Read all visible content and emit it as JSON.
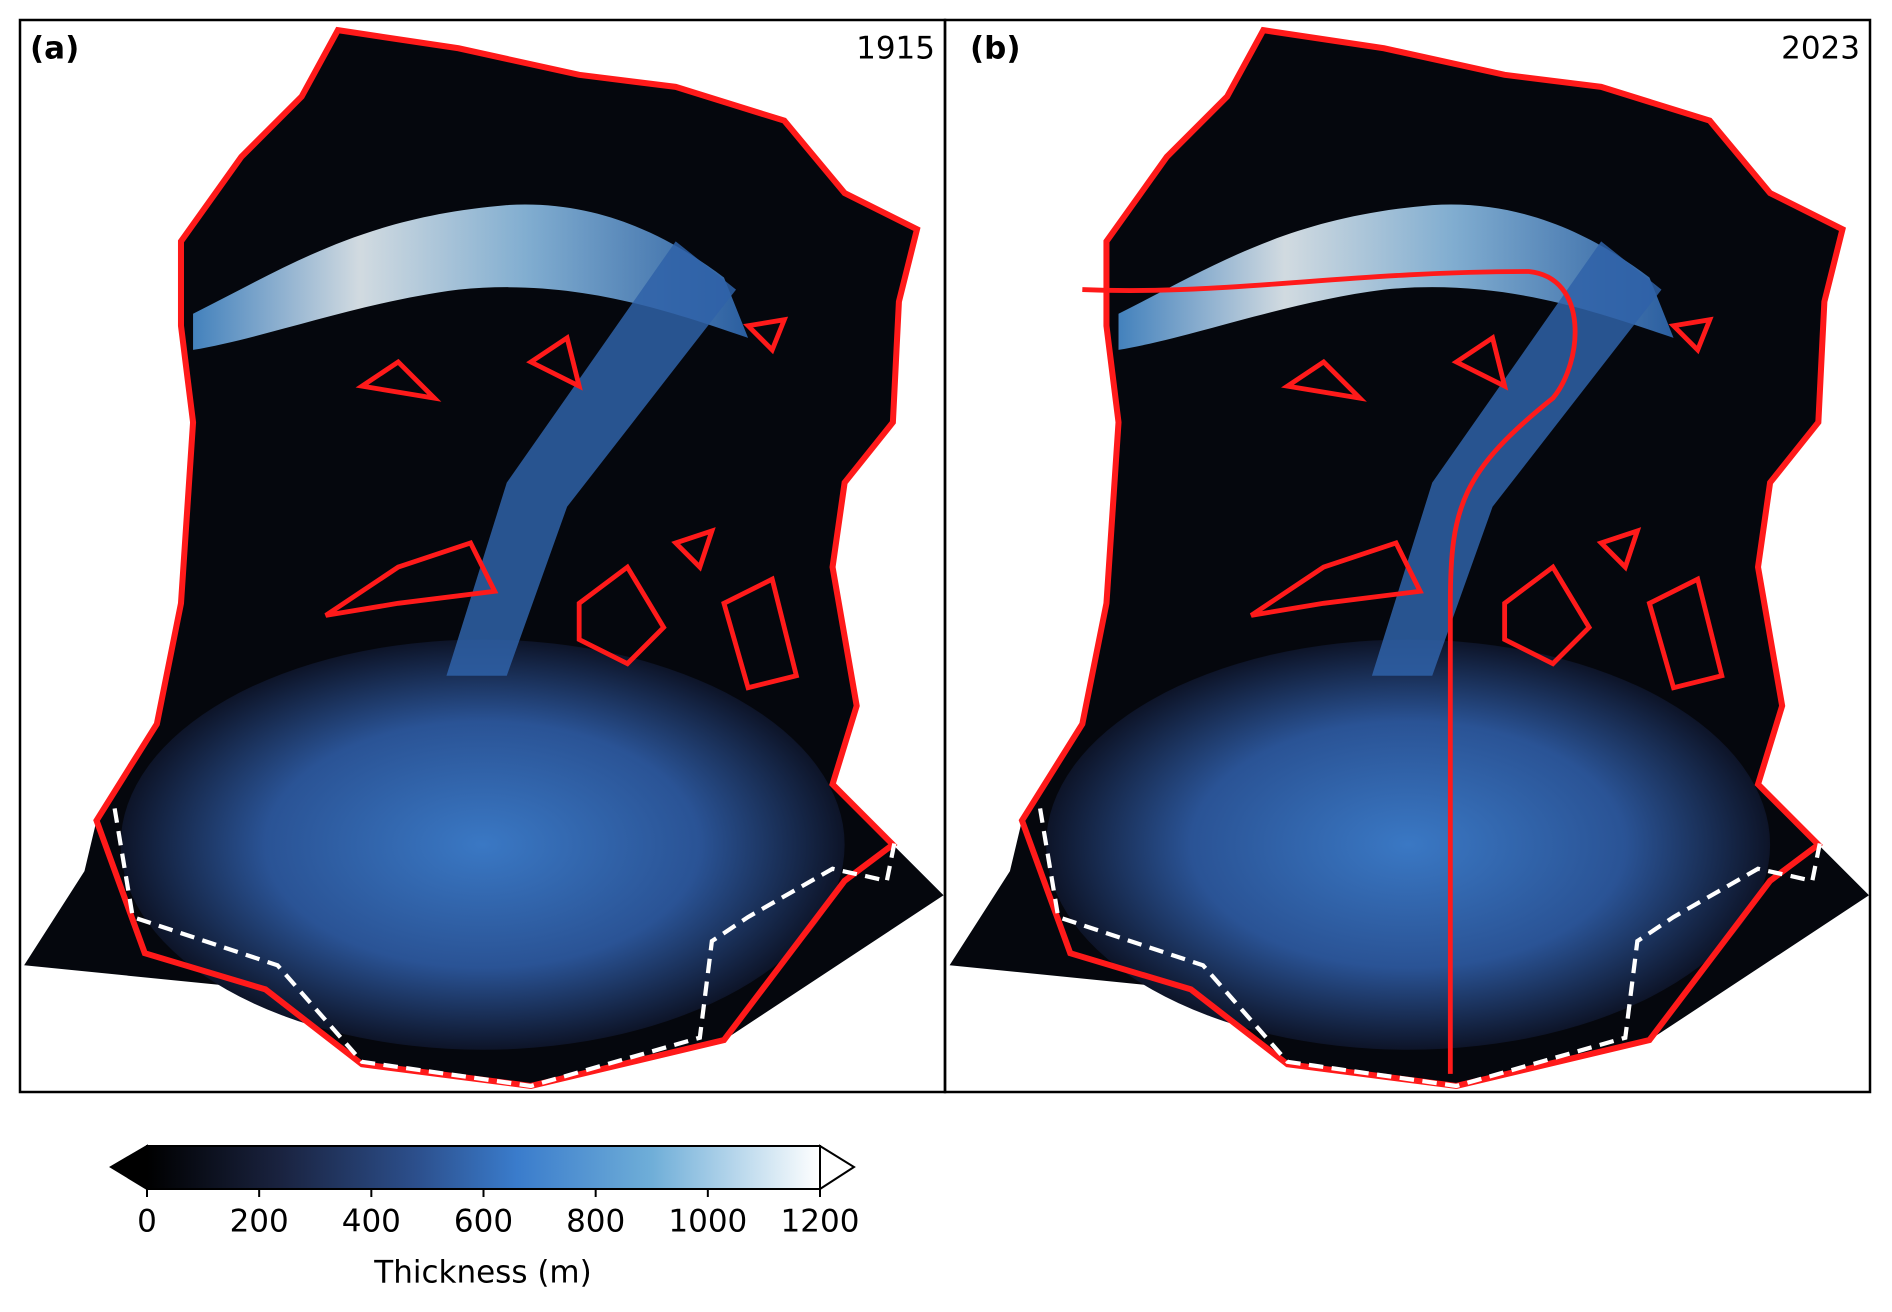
{
  "panels": [
    {
      "label": "(a)",
      "year": "1915"
    },
    {
      "label": "(b)",
      "year": "2023"
    }
  ],
  "colorbar": {
    "label": "Thickness (m)",
    "lim": [
      0,
      1200
    ],
    "ticks": [
      0,
      200,
      400,
      600,
      800,
      1000,
      1200
    ]
  }
}
